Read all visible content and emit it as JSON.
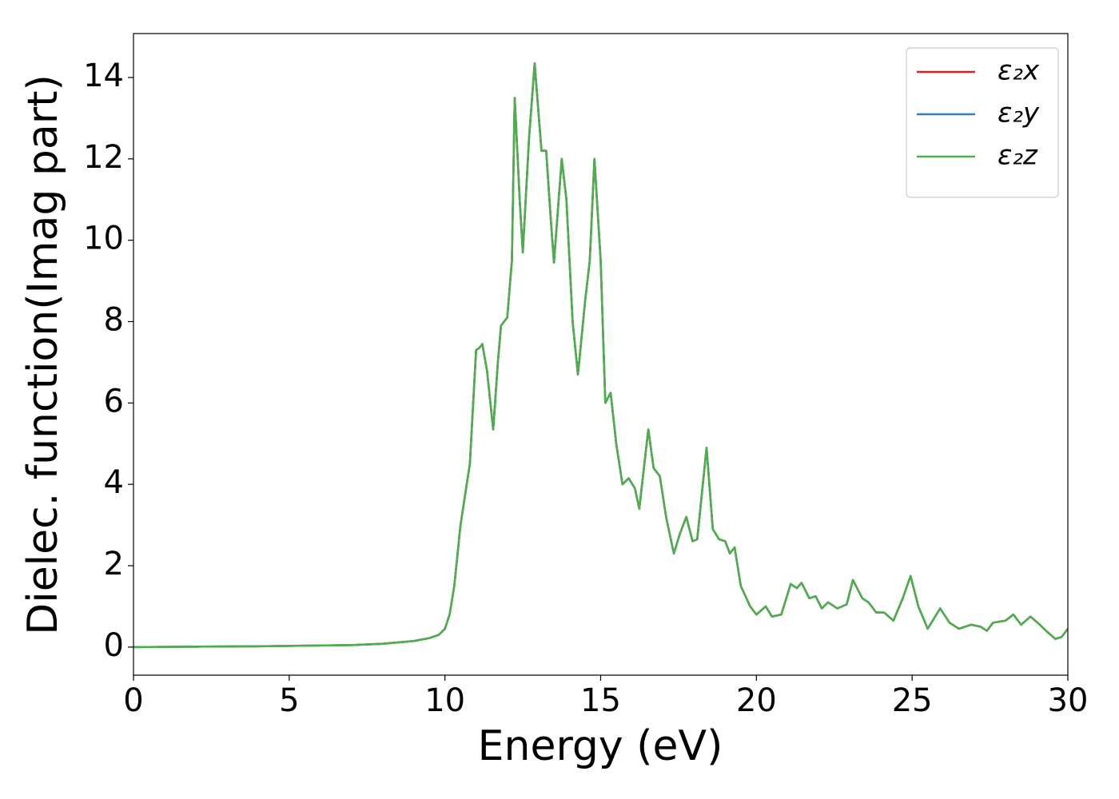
{
  "chart_data": {
    "type": "line",
    "xlabel": "Energy (eV)",
    "ylabel": "Dielec. function(Imag part)",
    "xlim": [
      0,
      30
    ],
    "ylim": [
      -0.69,
      15.08
    ],
    "xticks": [
      0,
      5,
      10,
      15,
      20,
      25,
      30
    ],
    "yticks": [
      0,
      2,
      4,
      6,
      8,
      10,
      12,
      14
    ],
    "legend": "upper right",
    "x": [
      0,
      2,
      4,
      6,
      7,
      8,
      9,
      9.5,
      9.8,
      10,
      10.15,
      10.3,
      10.5,
      10.8,
      11,
      11.1,
      11.2,
      11.35,
      11.55,
      11.7,
      11.8,
      12,
      12.15,
      12.24,
      12.4,
      12.5,
      12.7,
      12.88,
      13.1,
      13.25,
      13.4,
      13.5,
      13.75,
      13.9,
      14.1,
      14.27,
      14.5,
      14.65,
      14.8,
      15,
      15.15,
      15.32,
      15.5,
      15.7,
      15.9,
      16.1,
      16.24,
      16.53,
      16.7,
      16.9,
      17.1,
      17.35,
      17.55,
      17.75,
      17.95,
      18.1,
      18.4,
      18.6,
      18.8,
      19,
      19.15,
      19.3,
      19.5,
      19.8,
      20,
      20.3,
      20.5,
      20.8,
      21.1,
      21.3,
      21.45,
      21.7,
      21.9,
      22.1,
      22.3,
      22.6,
      22.9,
      23.1,
      23.4,
      23.6,
      23.85,
      24.1,
      24.4,
      24.7,
      24.95,
      25.2,
      25.5,
      25.9,
      26.2,
      26.5,
      26.9,
      27.2,
      27.4,
      27.6,
      28,
      28.25,
      28.5,
      28.8,
      29.1,
      29.3,
      29.6,
      29.8,
      30
    ],
    "series": [
      {
        "name": "ε₂x",
        "color": "#e41a1c",
        "values": [
          0,
          0.01,
          0.02,
          0.04,
          0.05,
          0.08,
          0.15,
          0.22,
          0.3,
          0.45,
          0.8,
          1.5,
          3,
          4.5,
          7.3,
          7.35,
          7.45,
          6.8,
          5.35,
          7,
          7.9,
          8.1,
          9.5,
          13.5,
          11,
          9.7,
          12.5,
          14.35,
          12.2,
          12.2,
          10.5,
          9.45,
          12,
          11,
          8,
          6.7,
          8.5,
          9.5,
          12,
          9.5,
          6,
          6.25,
          5,
          4,
          4.15,
          3.9,
          3.4,
          5.35,
          4.4,
          4.2,
          3.2,
          2.3,
          2.8,
          3.2,
          2.6,
          2.65,
          4.9,
          2.9,
          2.65,
          2.6,
          2.3,
          2.45,
          1.5,
          1,
          0.8,
          1,
          0.75,
          0.8,
          1.55,
          1.45,
          1.58,
          1.2,
          1.25,
          0.95,
          1.1,
          0.95,
          1.05,
          1.65,
          1.2,
          1.1,
          0.85,
          0.85,
          0.65,
          1.2,
          1.75,
          1,
          0.45,
          0.95,
          0.6,
          0.45,
          0.55,
          0.5,
          0.4,
          0.6,
          0.65,
          0.8,
          0.55,
          0.75,
          0.55,
          0.4,
          0.2,
          0.25,
          0.45
        ]
      },
      {
        "name": "ε₂y",
        "color": "#377eb8",
        "values": [
          0,
          0.01,
          0.02,
          0.04,
          0.05,
          0.08,
          0.15,
          0.22,
          0.3,
          0.45,
          0.8,
          1.5,
          3,
          4.5,
          7.3,
          7.35,
          7.45,
          6.8,
          5.35,
          7,
          7.9,
          8.1,
          9.5,
          13.5,
          11,
          9.7,
          12.5,
          14.35,
          12.2,
          12.2,
          10.5,
          9.45,
          12,
          11,
          8,
          6.7,
          8.5,
          9.5,
          12,
          9.5,
          6,
          6.25,
          5,
          4,
          4.15,
          3.9,
          3.4,
          5.35,
          4.4,
          4.2,
          3.2,
          2.3,
          2.8,
          3.2,
          2.6,
          2.65,
          4.9,
          2.9,
          2.65,
          2.6,
          2.3,
          2.45,
          1.5,
          1,
          0.8,
          1,
          0.75,
          0.8,
          1.55,
          1.45,
          1.58,
          1.2,
          1.25,
          0.95,
          1.1,
          0.95,
          1.05,
          1.65,
          1.2,
          1.1,
          0.85,
          0.85,
          0.65,
          1.2,
          1.75,
          1,
          0.45,
          0.95,
          0.6,
          0.45,
          0.55,
          0.5,
          0.4,
          0.6,
          0.65,
          0.8,
          0.55,
          0.75,
          0.55,
          0.4,
          0.2,
          0.25,
          0.45
        ]
      },
      {
        "name": "ε₂z",
        "color": "#4daf4a",
        "values": [
          0,
          0.01,
          0.02,
          0.04,
          0.05,
          0.08,
          0.15,
          0.22,
          0.3,
          0.45,
          0.8,
          1.5,
          3,
          4.5,
          7.3,
          7.35,
          7.45,
          6.8,
          5.35,
          7,
          7.9,
          8.1,
          9.5,
          13.5,
          11,
          9.7,
          12.5,
          14.35,
          12.2,
          12.2,
          10.5,
          9.45,
          12,
          11,
          8,
          6.7,
          8.5,
          9.5,
          12,
          9.5,
          6,
          6.25,
          5,
          4,
          4.15,
          3.9,
          3.4,
          5.35,
          4.4,
          4.2,
          3.2,
          2.3,
          2.8,
          3.2,
          2.6,
          2.65,
          4.9,
          2.9,
          2.65,
          2.6,
          2.3,
          2.45,
          1.5,
          1,
          0.8,
          1,
          0.75,
          0.8,
          1.55,
          1.45,
          1.58,
          1.2,
          1.25,
          0.95,
          1.1,
          0.95,
          1.05,
          1.65,
          1.2,
          1.1,
          0.85,
          0.85,
          0.65,
          1.2,
          1.75,
          1,
          0.45,
          0.95,
          0.6,
          0.45,
          0.55,
          0.5,
          0.4,
          0.6,
          0.65,
          0.8,
          0.55,
          0.75,
          0.55,
          0.4,
          0.2,
          0.25,
          0.45
        ]
      }
    ]
  }
}
